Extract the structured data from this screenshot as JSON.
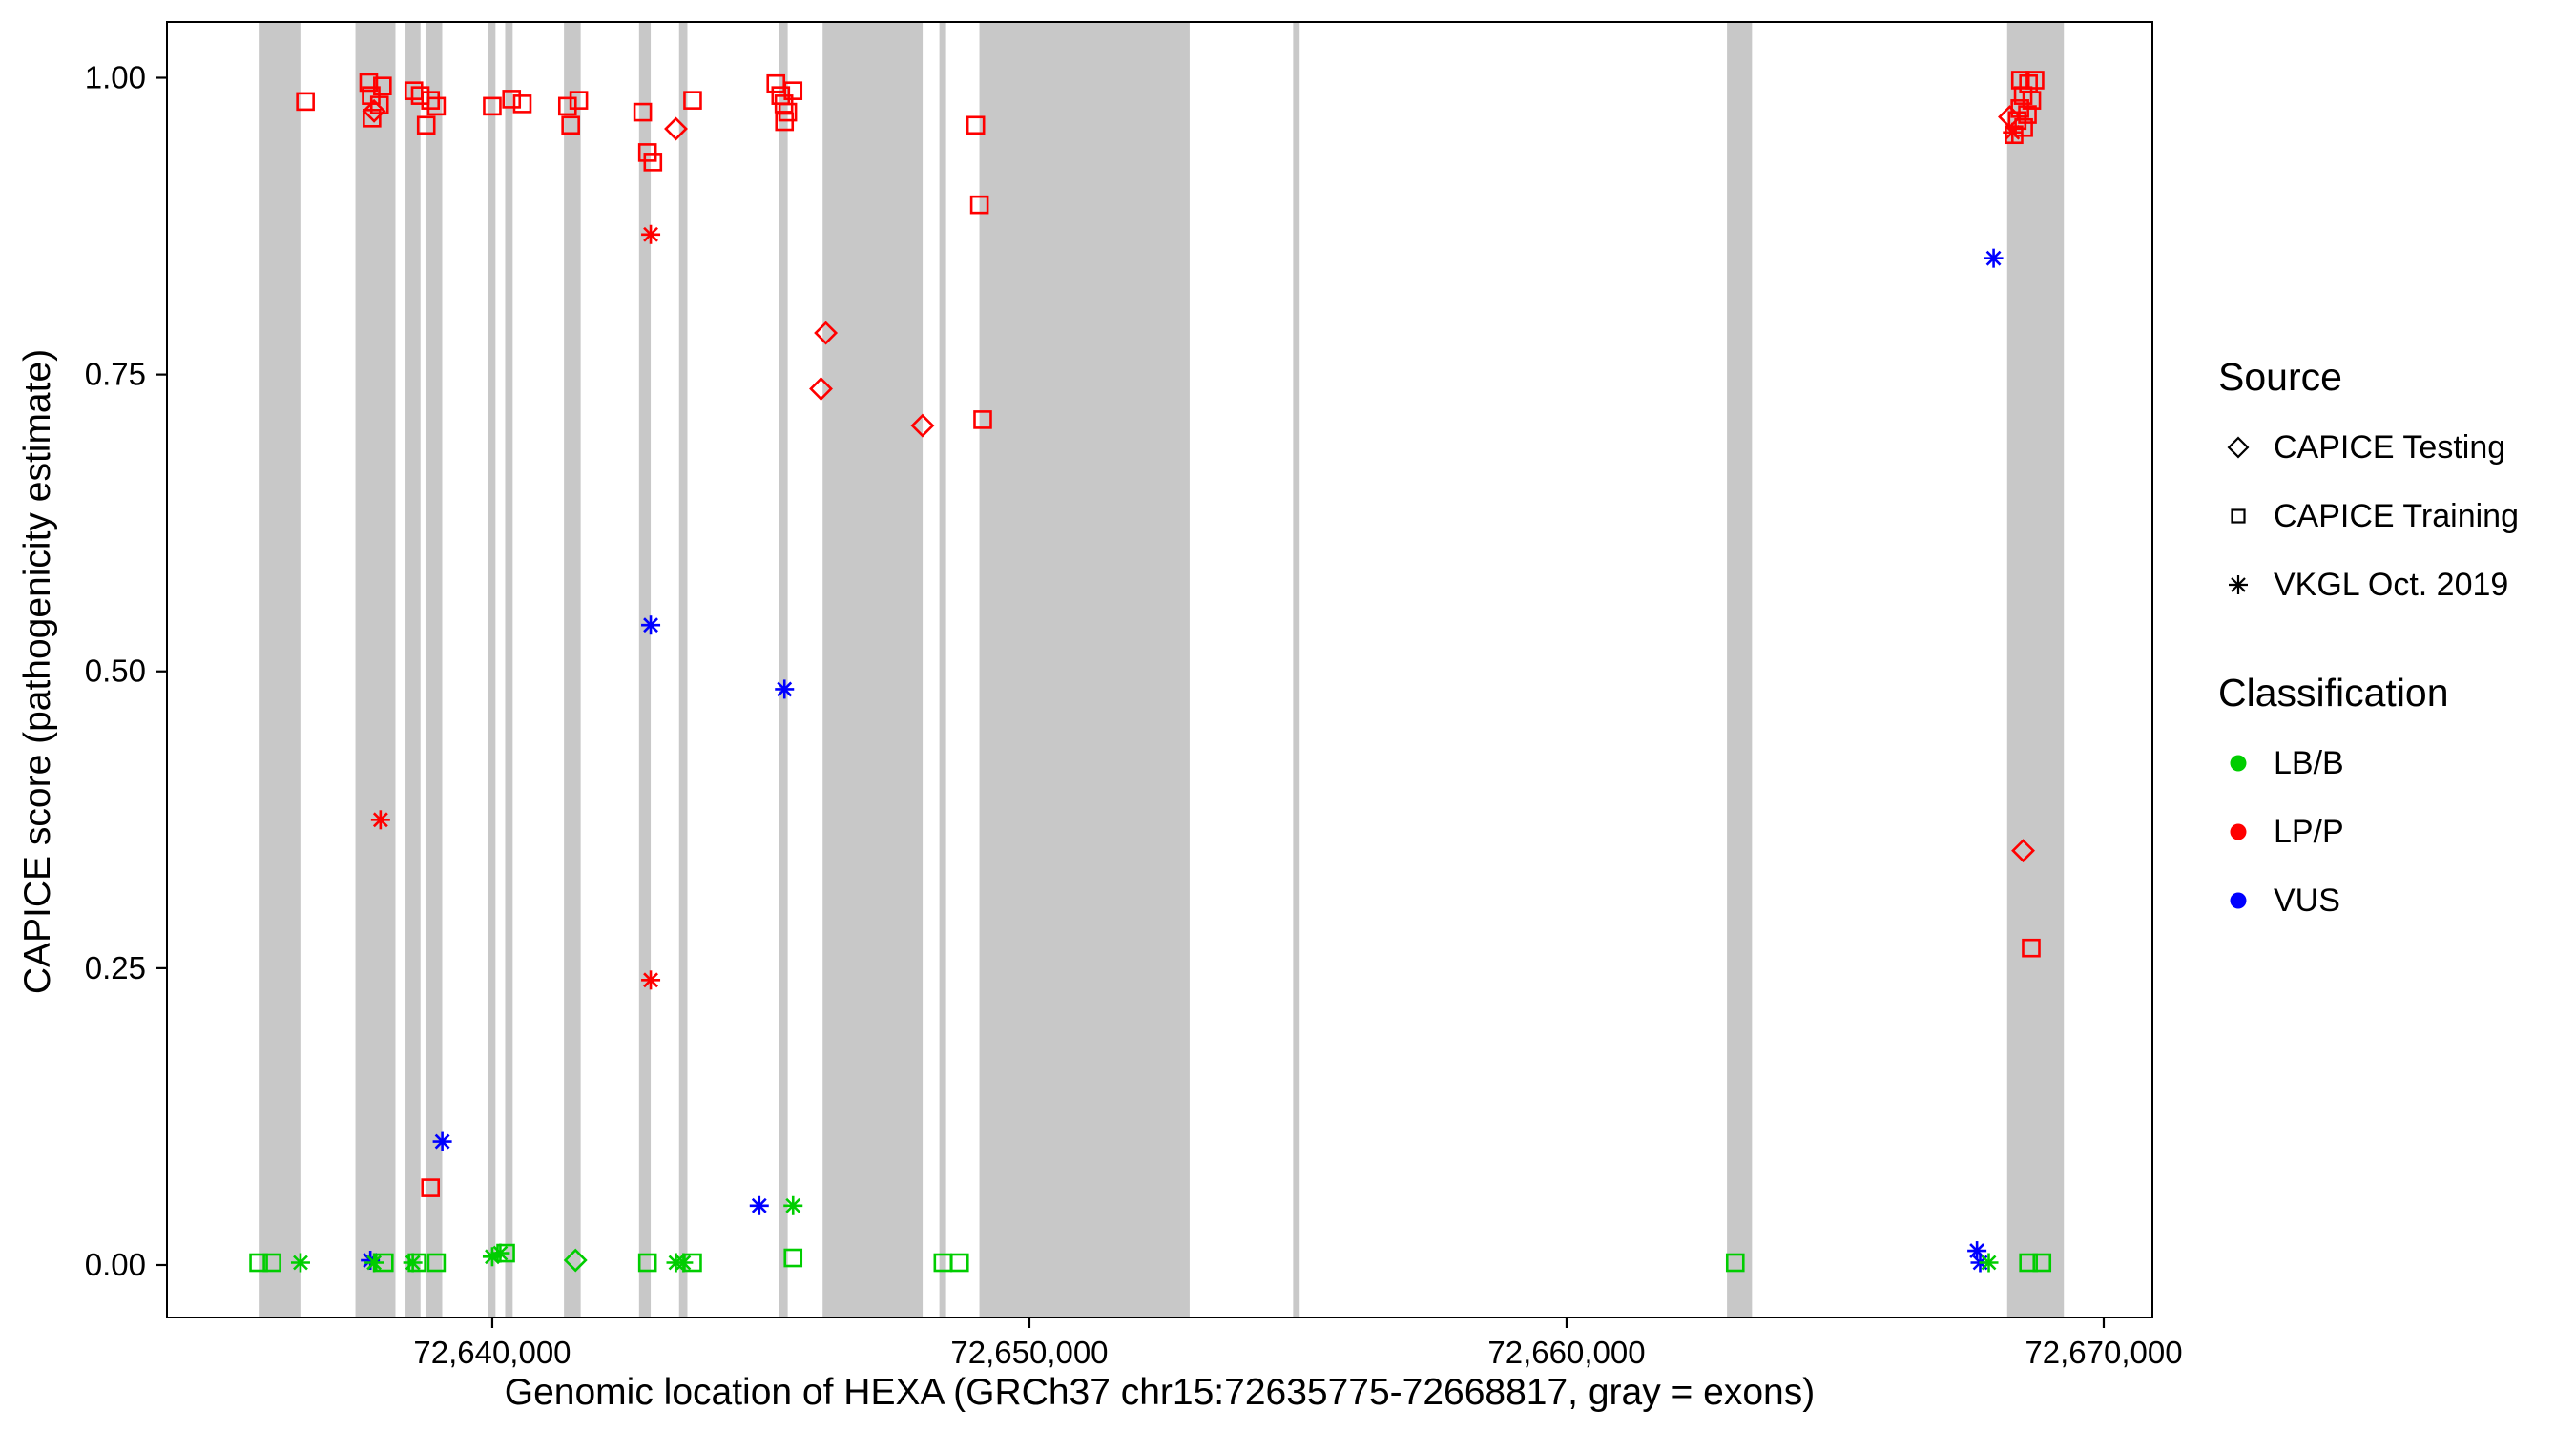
{
  "legend": {
    "source": {
      "title": "Source",
      "items": [
        {
          "label": "CAPICE Testing",
          "shape": "diamond"
        },
        {
          "label": "CAPICE Training",
          "shape": "square"
        },
        {
          "label": "VKGL Oct. 2019",
          "shape": "asterisk"
        }
      ]
    },
    "classification": {
      "title": "Classification",
      "items": [
        {
          "label": "LB/B",
          "color": "#00CD00"
        },
        {
          "label": "LP/P",
          "color": "#FF0000"
        },
        {
          "label": "VUS",
          "color": "#0000FF"
        }
      ]
    }
  },
  "chart_data": {
    "type": "scatter",
    "title": "",
    "xlabel": "Genomic location of HEXA (GRCh37 chr15:72635775-72668817, gray = exons)",
    "ylabel": "CAPICE score (pathogenicity estimate)",
    "xlim": [
      72633944,
      72670906
    ],
    "ylim": [
      -0.0442,
      1.047
    ],
    "grid": false,
    "legend_position": "right",
    "x_ticks": [
      {
        "value": 72640000,
        "label": "72,640,000"
      },
      {
        "value": 72650000,
        "label": "72,650,000"
      },
      {
        "value": 72660000,
        "label": "72,660,000"
      },
      {
        "value": 72670000,
        "label": "72,670,000"
      }
    ],
    "y_ticks": [
      {
        "value": 0.0,
        "label": "0.00"
      },
      {
        "value": 0.25,
        "label": "0.25"
      },
      {
        "value": 0.5,
        "label": "0.50"
      },
      {
        "value": 0.75,
        "label": "0.75"
      },
      {
        "value": 1.0,
        "label": "1.00"
      }
    ],
    "exon_color": "#C8C8C8",
    "exons": [
      [
        72635652,
        72636428
      ],
      [
        72637453,
        72638198
      ],
      [
        72638385,
        72638664
      ],
      [
        72638757,
        72639068
      ],
      [
        72639920,
        72640060
      ],
      [
        72640240,
        72640380
      ],
      [
        72641335,
        72641646
      ],
      [
        72642733,
        72642950
      ],
      [
        72643478,
        72643633
      ],
      [
        72645330,
        72645500
      ],
      [
        72646150,
        72648013
      ],
      [
        72648324,
        72648448
      ],
      [
        72649069,
        72652983
      ],
      [
        72654909,
        72655031
      ],
      [
        72662986,
        72663452
      ],
      [
        72668202,
        72669258
      ]
    ],
    "shape_map": {
      "CAPICE Testing": "diamond",
      "CAPICE Training": "square",
      "VKGL Oct. 2019": "asterisk"
    },
    "color_map": {
      "LB/B": "#00CD00",
      "LP/P": "#FF0000",
      "VUS": "#0000FF"
    },
    "points": [
      {
        "x": 72637730,
        "y": 0.004,
        "source": "VKGL Oct. 2019",
        "class": "VUS"
      },
      {
        "x": 72667640,
        "y": 0.012,
        "source": "VKGL Oct. 2019",
        "class": "VUS"
      },
      {
        "x": 72667700,
        "y": 0.002,
        "source": "VKGL Oct. 2019",
        "class": "VUS"
      },
      {
        "x": 72635650,
        "y": 0.002,
        "source": "CAPICE Training",
        "class": "LB/B"
      },
      {
        "x": 72635900,
        "y": 0.002,
        "source": "CAPICE Training",
        "class": "LB/B"
      },
      {
        "x": 72637990,
        "y": 0.002,
        "source": "CAPICE Training",
        "class": "LB/B"
      },
      {
        "x": 72638600,
        "y": 0.002,
        "source": "CAPICE Training",
        "class": "LB/B"
      },
      {
        "x": 72638960,
        "y": 0.002,
        "source": "CAPICE Training",
        "class": "LB/B"
      },
      {
        "x": 72640250,
        "y": 0.01,
        "source": "CAPICE Training",
        "class": "LB/B"
      },
      {
        "x": 72642890,
        "y": 0.002,
        "source": "CAPICE Training",
        "class": "LB/B"
      },
      {
        "x": 72643730,
        "y": 0.002,
        "source": "CAPICE Training",
        "class": "LB/B"
      },
      {
        "x": 72645600,
        "y": 0.006,
        "source": "CAPICE Training",
        "class": "LB/B"
      },
      {
        "x": 72648390,
        "y": 0.002,
        "source": "CAPICE Training",
        "class": "LB/B"
      },
      {
        "x": 72648700,
        "y": 0.002,
        "source": "CAPICE Training",
        "class": "LB/B"
      },
      {
        "x": 72663140,
        "y": 0.002,
        "source": "CAPICE Training",
        "class": "LB/B"
      },
      {
        "x": 72668600,
        "y": 0.002,
        "source": "CAPICE Training",
        "class": "LB/B"
      },
      {
        "x": 72668850,
        "y": 0.002,
        "source": "CAPICE Training",
        "class": "LB/B"
      },
      {
        "x": 72636430,
        "y": 0.002,
        "source": "VKGL Oct. 2019",
        "class": "LB/B"
      },
      {
        "x": 72637800,
        "y": 0.002,
        "source": "VKGL Oct. 2019",
        "class": "LB/B"
      },
      {
        "x": 72638520,
        "y": 0.002,
        "source": "VKGL Oct. 2019",
        "class": "LB/B"
      },
      {
        "x": 72640000,
        "y": 0.007,
        "source": "VKGL Oct. 2019",
        "class": "LB/B"
      },
      {
        "x": 72640150,
        "y": 0.01,
        "source": "VKGL Oct. 2019",
        "class": "LB/B"
      },
      {
        "x": 72643420,
        "y": 0.002,
        "source": "VKGL Oct. 2019",
        "class": "LB/B"
      },
      {
        "x": 72643560,
        "y": 0.002,
        "source": "VKGL Oct. 2019",
        "class": "LB/B"
      },
      {
        "x": 72645600,
        "y": 0.05,
        "source": "VKGL Oct. 2019",
        "class": "LB/B"
      },
      {
        "x": 72667860,
        "y": 0.002,
        "source": "VKGL Oct. 2019",
        "class": "LB/B"
      },
      {
        "x": 72641550,
        "y": 0.004,
        "source": "CAPICE Testing",
        "class": "LB/B"
      },
      {
        "x": 72636522,
        "y": 0.98,
        "source": "CAPICE Training",
        "class": "LP/P"
      },
      {
        "x": 72637700,
        "y": 0.996,
        "source": "CAPICE Training",
        "class": "LP/P"
      },
      {
        "x": 72637745,
        "y": 0.985,
        "source": "CAPICE Training",
        "class": "LP/P"
      },
      {
        "x": 72637900,
        "y": 0.977,
        "source": "CAPICE Training",
        "class": "LP/P"
      },
      {
        "x": 72637955,
        "y": 0.993,
        "source": "CAPICE Training",
        "class": "LP/P"
      },
      {
        "x": 72637760,
        "y": 0.966,
        "source": "CAPICE Training",
        "class": "LP/P"
      },
      {
        "x": 72638540,
        "y": 0.989,
        "source": "CAPICE Training",
        "class": "LP/P"
      },
      {
        "x": 72638660,
        "y": 0.985,
        "source": "CAPICE Training",
        "class": "LP/P"
      },
      {
        "x": 72638850,
        "y": 0.981,
        "source": "CAPICE Training",
        "class": "LP/P"
      },
      {
        "x": 72638960,
        "y": 0.976,
        "source": "CAPICE Training",
        "class": "LP/P"
      },
      {
        "x": 72638770,
        "y": 0.96,
        "source": "CAPICE Training",
        "class": "LP/P"
      },
      {
        "x": 72640000,
        "y": 0.976,
        "source": "CAPICE Training",
        "class": "LP/P"
      },
      {
        "x": 72640360,
        "y": 0.982,
        "source": "CAPICE Training",
        "class": "LP/P"
      },
      {
        "x": 72640560,
        "y": 0.978,
        "source": "CAPICE Training",
        "class": "LP/P"
      },
      {
        "x": 72641400,
        "y": 0.976,
        "source": "CAPICE Training",
        "class": "LP/P"
      },
      {
        "x": 72641610,
        "y": 0.981,
        "source": "CAPICE Training",
        "class": "LP/P"
      },
      {
        "x": 72641460,
        "y": 0.96,
        "source": "CAPICE Training",
        "class": "LP/P"
      },
      {
        "x": 72642800,
        "y": 0.971,
        "source": "CAPICE Training",
        "class": "LP/P"
      },
      {
        "x": 72642890,
        "y": 0.937,
        "source": "CAPICE Training",
        "class": "LP/P"
      },
      {
        "x": 72642990,
        "y": 0.929,
        "source": "CAPICE Training",
        "class": "LP/P"
      },
      {
        "x": 72643730,
        "y": 0.981,
        "source": "CAPICE Training",
        "class": "LP/P"
      },
      {
        "x": 72645280,
        "y": 0.995,
        "source": "CAPICE Training",
        "class": "LP/P"
      },
      {
        "x": 72645370,
        "y": 0.985,
        "source": "CAPICE Training",
        "class": "LP/P"
      },
      {
        "x": 72645430,
        "y": 0.978,
        "source": "CAPICE Training",
        "class": "LP/P"
      },
      {
        "x": 72645500,
        "y": 0.971,
        "source": "CAPICE Training",
        "class": "LP/P"
      },
      {
        "x": 72645440,
        "y": 0.963,
        "source": "CAPICE Training",
        "class": "LP/P"
      },
      {
        "x": 72645600,
        "y": 0.989,
        "source": "CAPICE Training",
        "class": "LP/P"
      },
      {
        "x": 72649000,
        "y": 0.96,
        "source": "CAPICE Training",
        "class": "LP/P"
      },
      {
        "x": 72649070,
        "y": 0.893,
        "source": "CAPICE Training",
        "class": "LP/P"
      },
      {
        "x": 72649130,
        "y": 0.712,
        "source": "CAPICE Training",
        "class": "LP/P"
      },
      {
        "x": 72638850,
        "y": 0.065,
        "source": "CAPICE Training",
        "class": "LP/P"
      },
      {
        "x": 72668450,
        "y": 0.998,
        "source": "CAPICE Training",
        "class": "LP/P"
      },
      {
        "x": 72668600,
        "y": 0.995,
        "source": "CAPICE Training",
        "class": "LP/P"
      },
      {
        "x": 72668720,
        "y": 0.998,
        "source": "CAPICE Training",
        "class": "LP/P"
      },
      {
        "x": 72668500,
        "y": 0.985,
        "source": "CAPICE Training",
        "class": "LP/P"
      },
      {
        "x": 72668660,
        "y": 0.981,
        "source": "CAPICE Training",
        "class": "LP/P"
      },
      {
        "x": 72668440,
        "y": 0.974,
        "source": "CAPICE Training",
        "class": "LP/P"
      },
      {
        "x": 72668580,
        "y": 0.969,
        "source": "CAPICE Training",
        "class": "LP/P"
      },
      {
        "x": 72668390,
        "y": 0.964,
        "source": "CAPICE Training",
        "class": "LP/P"
      },
      {
        "x": 72668510,
        "y": 0.958,
        "source": "CAPICE Training",
        "class": "LP/P"
      },
      {
        "x": 72668330,
        "y": 0.952,
        "source": "CAPICE Training",
        "class": "LP/P"
      },
      {
        "x": 72668650,
        "y": 0.267,
        "source": "CAPICE Training",
        "class": "LP/P"
      },
      {
        "x": 72637800,
        "y": 0.972,
        "source": "CAPICE Testing",
        "class": "LP/P"
      },
      {
        "x": 72643420,
        "y": 0.957,
        "source": "CAPICE Testing",
        "class": "LP/P"
      },
      {
        "x": 72646210,
        "y": 0.785,
        "source": "CAPICE Testing",
        "class": "LP/P"
      },
      {
        "x": 72646120,
        "y": 0.738,
        "source": "CAPICE Testing",
        "class": "LP/P"
      },
      {
        "x": 72648010,
        "y": 0.707,
        "source": "CAPICE Testing",
        "class": "LP/P"
      },
      {
        "x": 72668250,
        "y": 0.967,
        "source": "CAPICE Testing",
        "class": "LP/P"
      },
      {
        "x": 72668500,
        "y": 0.349,
        "source": "CAPICE Testing",
        "class": "LP/P"
      },
      {
        "x": 72637920,
        "y": 0.375,
        "source": "VKGL Oct. 2019",
        "class": "LP/P"
      },
      {
        "x": 72642950,
        "y": 0.868,
        "source": "VKGL Oct. 2019",
        "class": "LP/P"
      },
      {
        "x": 72642950,
        "y": 0.24,
        "source": "VKGL Oct. 2019",
        "class": "LP/P"
      },
      {
        "x": 72668300,
        "y": 0.954,
        "source": "VKGL Oct. 2019",
        "class": "LP/P"
      },
      {
        "x": 72642950,
        "y": 0.539,
        "source": "VKGL Oct. 2019",
        "class": "VUS"
      },
      {
        "x": 72645440,
        "y": 0.485,
        "source": "VKGL Oct. 2019",
        "class": "VUS"
      },
      {
        "x": 72667950,
        "y": 0.848,
        "source": "VKGL Oct. 2019",
        "class": "VUS"
      },
      {
        "x": 72639070,
        "y": 0.104,
        "source": "VKGL Oct. 2019",
        "class": "VUS"
      },
      {
        "x": 72644970,
        "y": 0.05,
        "source": "VKGL Oct. 2019",
        "class": "VUS"
      }
    ]
  }
}
